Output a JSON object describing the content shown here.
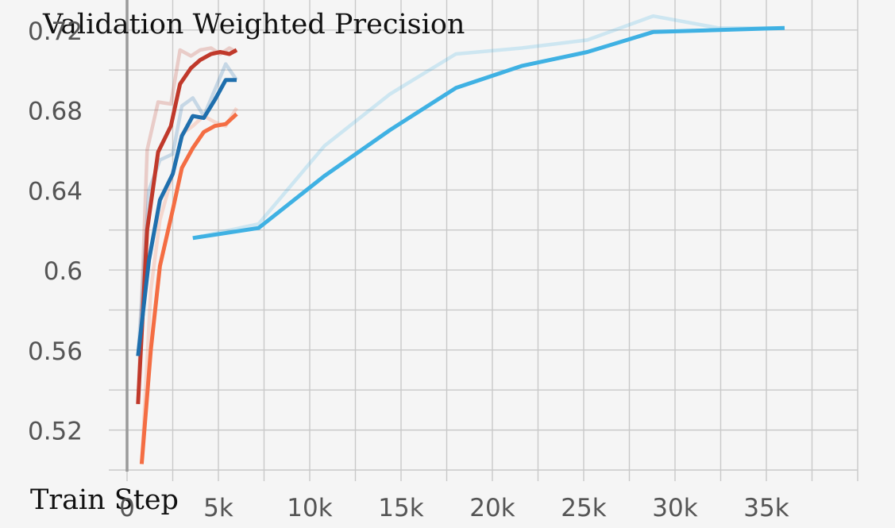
{
  "chart_data": {
    "type": "line",
    "title": "Validation Weighted Precision",
    "xlabel": "Train Step",
    "ylabel": "",
    "xlim": [
      -1000,
      40000
    ],
    "ylim": [
      0.5,
      0.735
    ],
    "x_ticks": [
      0,
      5000,
      10000,
      15000,
      20000,
      25000,
      30000,
      35000
    ],
    "x_tick_labels": [
      "0",
      "5k",
      "10k",
      "15k",
      "20k",
      "25k",
      "30k",
      "35k"
    ],
    "y_ticks": [
      0.52,
      0.56,
      0.6,
      0.64,
      0.68,
      0.72
    ],
    "y_tick_labels": [
      "0.52",
      "0.56",
      "0.6",
      "0.64",
      "0.68",
      "0.72"
    ],
    "grid": true,
    "series": [
      {
        "color": "#c0392b",
        "smoothed": true,
        "x": [
          600,
          1100,
          1700,
          2400,
          2900,
          3500,
          4000,
          4600,
          5100,
          5600,
          6000
        ],
        "y": [
          0.533,
          0.62,
          0.659,
          0.672,
          0.693,
          0.701,
          0.705,
          0.708,
          0.709,
          0.708,
          0.71
        ],
        "raw_y": [
          0.533,
          0.66,
          0.684,
          0.683,
          0.71,
          0.707,
          0.71,
          0.711,
          0.708,
          0.711,
          0.709
        ]
      },
      {
        "color": "#1f6fad",
        "smoothed": true,
        "x": [
          600,
          1200,
          1800,
          2500,
          3000,
          3600,
          4200,
          4800,
          5400,
          6000
        ],
        "y": [
          0.557,
          0.605,
          0.635,
          0.648,
          0.667,
          0.677,
          0.676,
          0.685,
          0.695,
          0.695
        ],
        "raw_y": [
          0.557,
          0.64,
          0.655,
          0.658,
          0.682,
          0.686,
          0.677,
          0.69,
          0.703,
          0.695
        ]
      },
      {
        "color": "#f46d43",
        "smoothed": true,
        "x": [
          800,
          1300,
          1800,
          2500,
          3000,
          3600,
          4200,
          4800,
          5400,
          6000
        ],
        "y": [
          0.503,
          0.56,
          0.602,
          0.63,
          0.651,
          0.661,
          0.669,
          0.672,
          0.673,
          0.678
        ],
        "raw_y": [
          0.503,
          0.59,
          0.625,
          0.648,
          0.668,
          0.672,
          0.677,
          0.674,
          0.672,
          0.681
        ]
      },
      {
        "color": "#3fb1e3",
        "smoothed": true,
        "x": [
          3600,
          7200,
          10800,
          14400,
          18000,
          21600,
          25200,
          28800,
          32400,
          36000
        ],
        "y": [
          0.616,
          0.621,
          0.647,
          0.67,
          0.691,
          0.702,
          0.709,
          0.719,
          0.72,
          0.721
        ],
        "raw_y": [
          0.616,
          0.623,
          0.662,
          0.688,
          0.708,
          0.711,
          0.715,
          0.727,
          0.721,
          0.721
        ]
      }
    ]
  }
}
